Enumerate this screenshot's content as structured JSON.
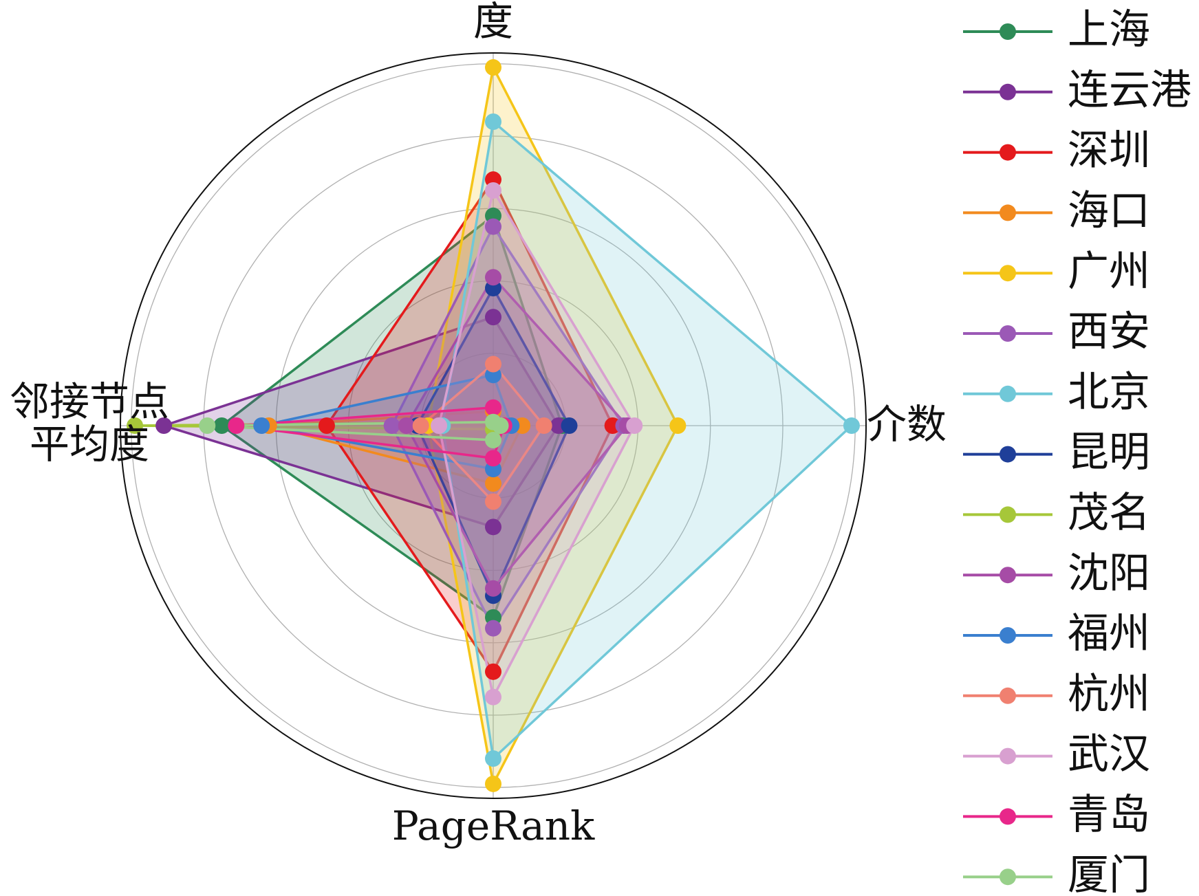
{
  "chart_data": {
    "type": "radar",
    "categories": [
      "度",
      "介数",
      "PageRank",
      "邻接节点平均度"
    ],
    "ylim": [
      0,
      1.03
    ],
    "yticks": [
      0.2,
      0.4,
      0.6,
      0.8,
      1.0
    ],
    "grid": true,
    "legend": "right",
    "series": [
      {
        "name": "上海",
        "color": "#2e8b57",
        "values": [
          0.58,
          0.19,
          0.53,
          0.75
        ]
      },
      {
        "name": "连云港",
        "color": "#7b3294",
        "values": [
          0.3,
          0.18,
          0.28,
          0.91
        ]
      },
      {
        "name": "深圳",
        "color": "#e41a1c",
        "values": [
          0.68,
          0.33,
          0.68,
          0.46
        ]
      },
      {
        "name": "海口",
        "color": "#f28a1e",
        "values": [
          0.04,
          0.08,
          0.16,
          0.62
        ]
      },
      {
        "name": "广州",
        "color": "#f5c518",
        "values": [
          0.99,
          0.51,
          0.99,
          0.18
        ]
      },
      {
        "name": "西安",
        "color": "#9b59b6",
        "values": [
          0.55,
          0.36,
          0.56,
          0.28
        ]
      },
      {
        "name": "北京",
        "color": "#70c8d8",
        "values": [
          0.84,
          0.99,
          0.92,
          0.14
        ]
      },
      {
        "name": "昆明",
        "color": "#1f3f99",
        "values": [
          0.38,
          0.21,
          0.47,
          0.21
        ]
      },
      {
        "name": "茂名",
        "color": "#a6c739",
        "values": [
          0.01,
          0.02,
          0.01,
          0.99
        ]
      },
      {
        "name": "沈阳",
        "color": "#a64ca6",
        "values": [
          0.41,
          0.37,
          0.45,
          0.24
        ]
      },
      {
        "name": "福州",
        "color": "#3a7fcf",
        "values": [
          0.14,
          0.05,
          0.12,
          0.64
        ]
      },
      {
        "name": "杭州",
        "color": "#f08070",
        "values": [
          0.17,
          0.14,
          0.21,
          0.2
        ]
      },
      {
        "name": "武汉",
        "color": "#d8a0d0",
        "values": [
          0.65,
          0.39,
          0.75,
          0.15
        ]
      },
      {
        "name": "青岛",
        "color": "#e8278a",
        "values": [
          0.05,
          0.03,
          0.09,
          0.71
        ]
      },
      {
        "name": "厦门",
        "color": "#98d08a",
        "values": [
          0.01,
          0.02,
          0.04,
          0.79
        ]
      }
    ]
  }
}
